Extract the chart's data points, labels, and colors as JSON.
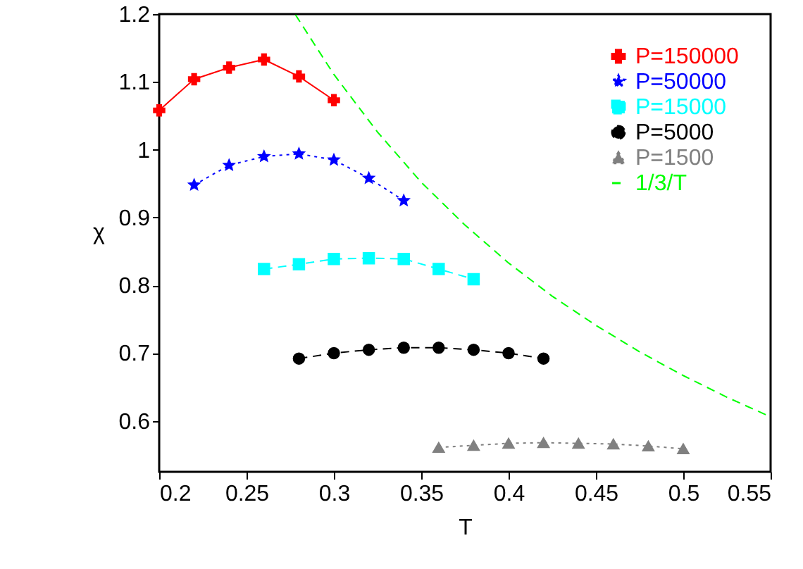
{
  "chart_data": {
    "type": "line",
    "xlabel": "T",
    "ylabel": "χ",
    "xlim": [
      0.2,
      0.55
    ],
    "ylim": [
      0.525,
      1.2
    ],
    "xticks": [
      0.2,
      0.25,
      0.3,
      0.35,
      0.4,
      0.45,
      0.5,
      0.55
    ],
    "yticks": [
      0.6,
      0.7,
      0.8,
      0.9,
      1,
      1.1,
      1.2
    ],
    "grid": false,
    "legend": "top right",
    "series": [
      {
        "name": "P=150000",
        "color": "#ff0000",
        "marker": "cross",
        "line_style": "solid",
        "x": [
          0.2,
          0.22,
          0.24,
          0.26,
          0.28,
          0.3
        ],
        "values": [
          1.058,
          1.104,
          1.121,
          1.133,
          1.108,
          1.073
        ]
      },
      {
        "name": "P=50000",
        "color": "#0000ff",
        "marker": "star",
        "line_style": "dotted",
        "x": [
          0.22,
          0.24,
          0.26,
          0.28,
          0.3,
          0.32,
          0.34
        ],
        "values": [
          0.948,
          0.977,
          0.99,
          0.994,
          0.985,
          0.958,
          0.925
        ]
      },
      {
        "name": "P=15000",
        "color": "#00ffff",
        "marker": "square",
        "line_style": "dashed",
        "x": [
          0.26,
          0.28,
          0.3,
          0.32,
          0.34,
          0.36,
          0.38
        ],
        "values": [
          0.824,
          0.831,
          0.839,
          0.84,
          0.839,
          0.824,
          0.809
        ]
      },
      {
        "name": "P=5000",
        "color": "#000000",
        "marker": "circle",
        "line_style": "dashed",
        "x": [
          0.28,
          0.3,
          0.32,
          0.34,
          0.36,
          0.38,
          0.4,
          0.42
        ],
        "values": [
          0.692,
          0.7,
          0.705,
          0.708,
          0.708,
          0.705,
          0.7,
          0.692
        ]
      },
      {
        "name": "P=1500",
        "color": "#808080",
        "marker": "triangle",
        "line_style": "dotted",
        "x": [
          0.36,
          0.38,
          0.4,
          0.42,
          0.44,
          0.46,
          0.48,
          0.5
        ],
        "values": [
          0.561,
          0.564,
          0.567,
          0.568,
          0.567,
          0.566,
          0.563,
          0.559
        ]
      },
      {
        "name": "1/3/T",
        "color": "#00ff00",
        "marker": "none",
        "line_style": "dashed",
        "x": [
          0.278,
          0.3,
          0.325,
          0.35,
          0.375,
          0.4,
          0.425,
          0.45,
          0.475,
          0.5,
          0.525,
          0.55
        ],
        "values": [
          1.199,
          1.111,
          1.026,
          0.952,
          0.889,
          0.833,
          0.784,
          0.741,
          0.702,
          0.667,
          0.635,
          0.606
        ]
      }
    ]
  }
}
